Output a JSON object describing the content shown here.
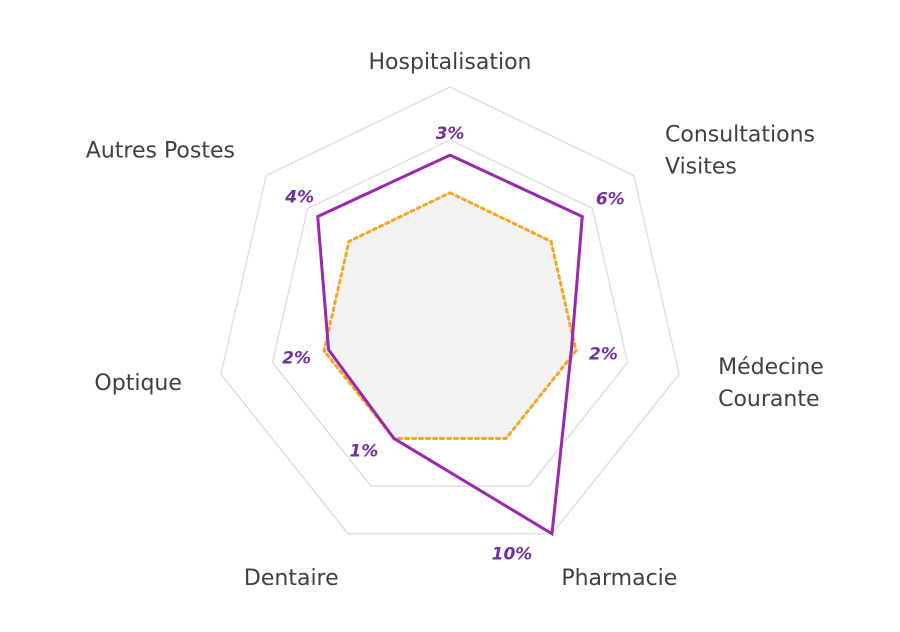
{
  "chart_data": {
    "type": "radar",
    "title": "",
    "categories": [
      "Hospitalisation",
      "Consultations Visites",
      "Médecine Courante",
      "Pharmacie",
      "Dentaire",
      "Optique",
      "Autres Postes"
    ],
    "category_label_lines": [
      [
        "Hospitalisation"
      ],
      [
        "Consultations",
        "Visites"
      ],
      [
        "Médecine",
        "Courante"
      ],
      [
        "Pharmacie"
      ],
      [
        "Dentaire"
      ],
      [
        "Optique"
      ],
      [
        "Autres Postes"
      ]
    ],
    "series": [
      {
        "values": [
          0.71,
          0.72,
          0.53,
          1.0,
          0.55,
          0.53,
          0.72
        ],
        "labels": [
          "3%",
          "6%",
          "2%",
          "10%",
          "1%",
          "2%",
          "4%"
        ],
        "style": "solid",
        "fill": "none"
      },
      {
        "values": [
          0.55,
          0.55,
          0.55,
          0.55,
          0.55,
          0.55,
          0.55
        ],
        "style": "dotted",
        "fill": "area"
      }
    ],
    "grid_levels": 3,
    "grid": true,
    "legend": "none"
  },
  "colors": {
    "series_solid": "#9B27AF",
    "series_dotted": "#F5A623",
    "dotted_fill": "#F2F2F2",
    "grid": "#D9D9D9",
    "axis_text": "#404040",
    "data_label_text": "#7030A0"
  }
}
